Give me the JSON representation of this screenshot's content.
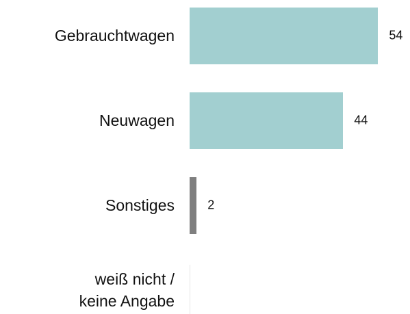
{
  "chart_data": {
    "type": "bar",
    "orientation": "horizontal",
    "categories": [
      "Gebrauchtwagen",
      "Neuwagen",
      "Sonstiges",
      "weiß nicht /\nkeine Angabe"
    ],
    "values": [
      54,
      44,
      2,
      null
    ],
    "colors": [
      "#a2cfd0",
      "#a2cfd0",
      "#7f7f7f",
      "#7f7f7f"
    ]
  }
}
